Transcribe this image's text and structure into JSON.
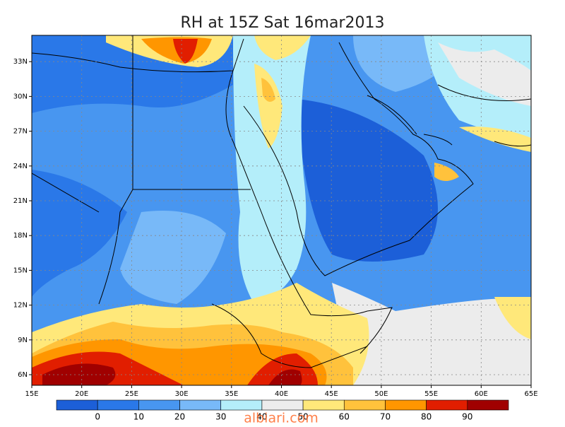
{
  "title": "RH at 15Z Sat 16mar2013",
  "lon_ticks": [
    "15E",
    "20E",
    "25E",
    "30E",
    "35E",
    "40E",
    "45E",
    "50E",
    "55E",
    "60E",
    "65E"
  ],
  "lat_ticks": [
    "6N",
    "9N",
    "12N",
    "15N",
    "18N",
    "21N",
    "24N",
    "27N",
    "30N",
    "33N"
  ],
  "colorbar": {
    "levels": [
      0,
      10,
      20,
      30,
      40,
      50,
      60,
      70,
      80,
      90
    ],
    "colors": [
      "#1c5fd8",
      "#2a78e8",
      "#4896f0",
      "#78b9f8",
      "#b4eefa",
      "#ececec",
      "#ffe87a",
      "#ffc23c",
      "#ff9600",
      "#e11e00",
      "#a00000"
    ]
  },
  "watermark": "albiari.com"
}
